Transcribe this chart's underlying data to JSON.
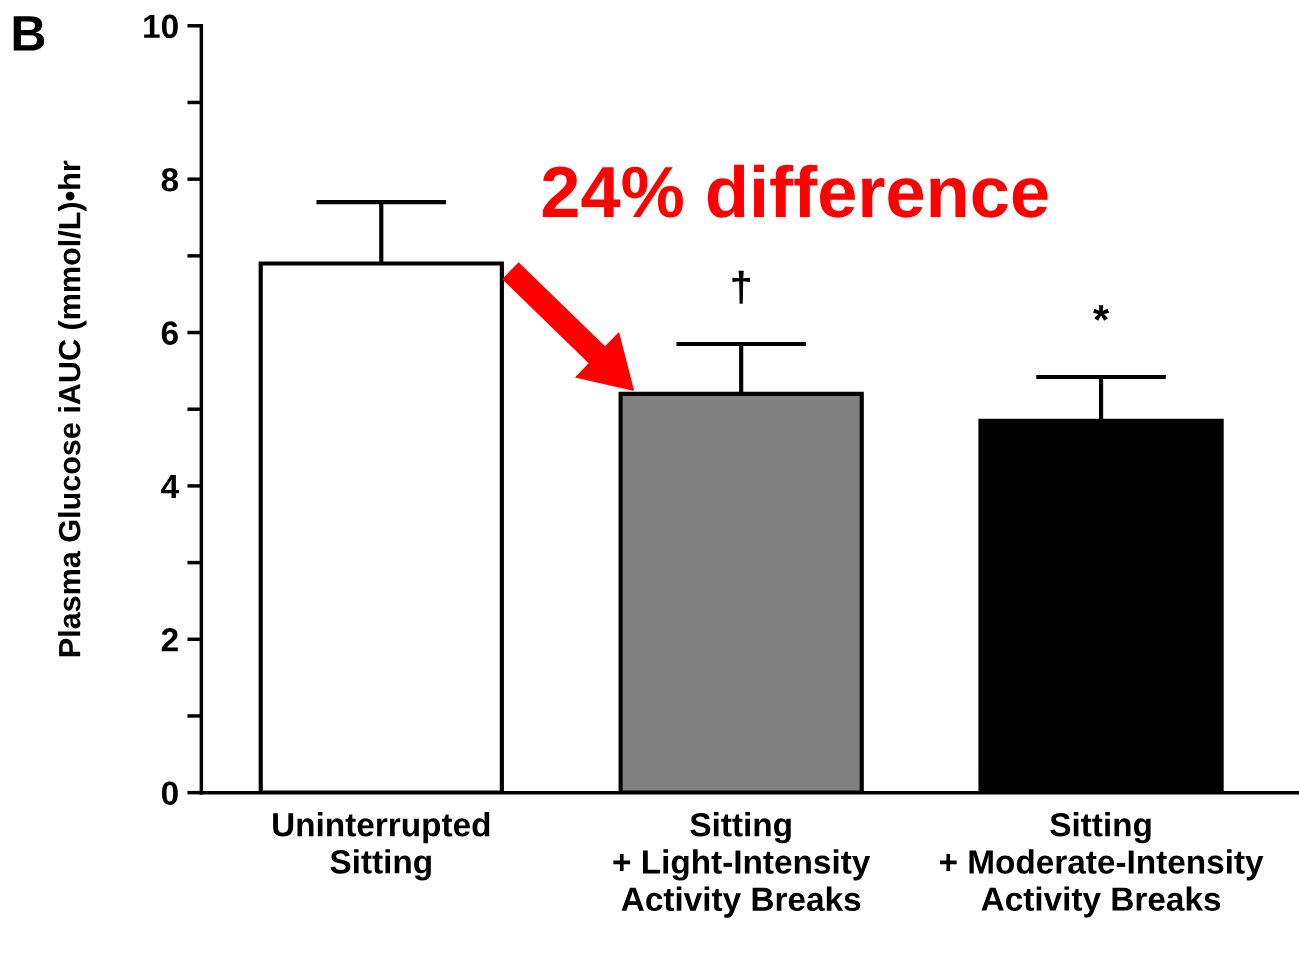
{
  "chart_data": {
    "type": "bar",
    "ylabel": "Plasma Glucose iAUC (mmol/L)•hr",
    "categories": [
      "Uninterrupted\nSitting",
      "Sitting\n+ Light-Intensity\nActivity Breaks",
      "Sitting\n+ Moderate-Intensity\nActivity Breaks"
    ],
    "values": [
      6.9,
      5.2,
      4.85
    ],
    "colors": [
      "#ffffff",
      "#808080",
      "#000000"
    ],
    "errors": [
      [
        6.9,
        7.7
      ],
      [
        5.2,
        5.85
      ],
      [
        4.85,
        5.42
      ]
    ],
    "ylim": [
      0,
      10
    ],
    "yticks": [
      0,
      {
        "value": 1,
        "label": null
      },
      2,
      {
        "value": 3,
        "label": null
      },
      4,
      {
        "value": 5,
        "label": null
      },
      6,
      {
        "value": 7,
        "label": null
      },
      8,
      {
        "value": 9,
        "label": null
      },
      10
    ],
    "annotations": [
      "B",
      "24% difference",
      "†",
      "*"
    ],
    "grid": false,
    "legend": false
  }
}
